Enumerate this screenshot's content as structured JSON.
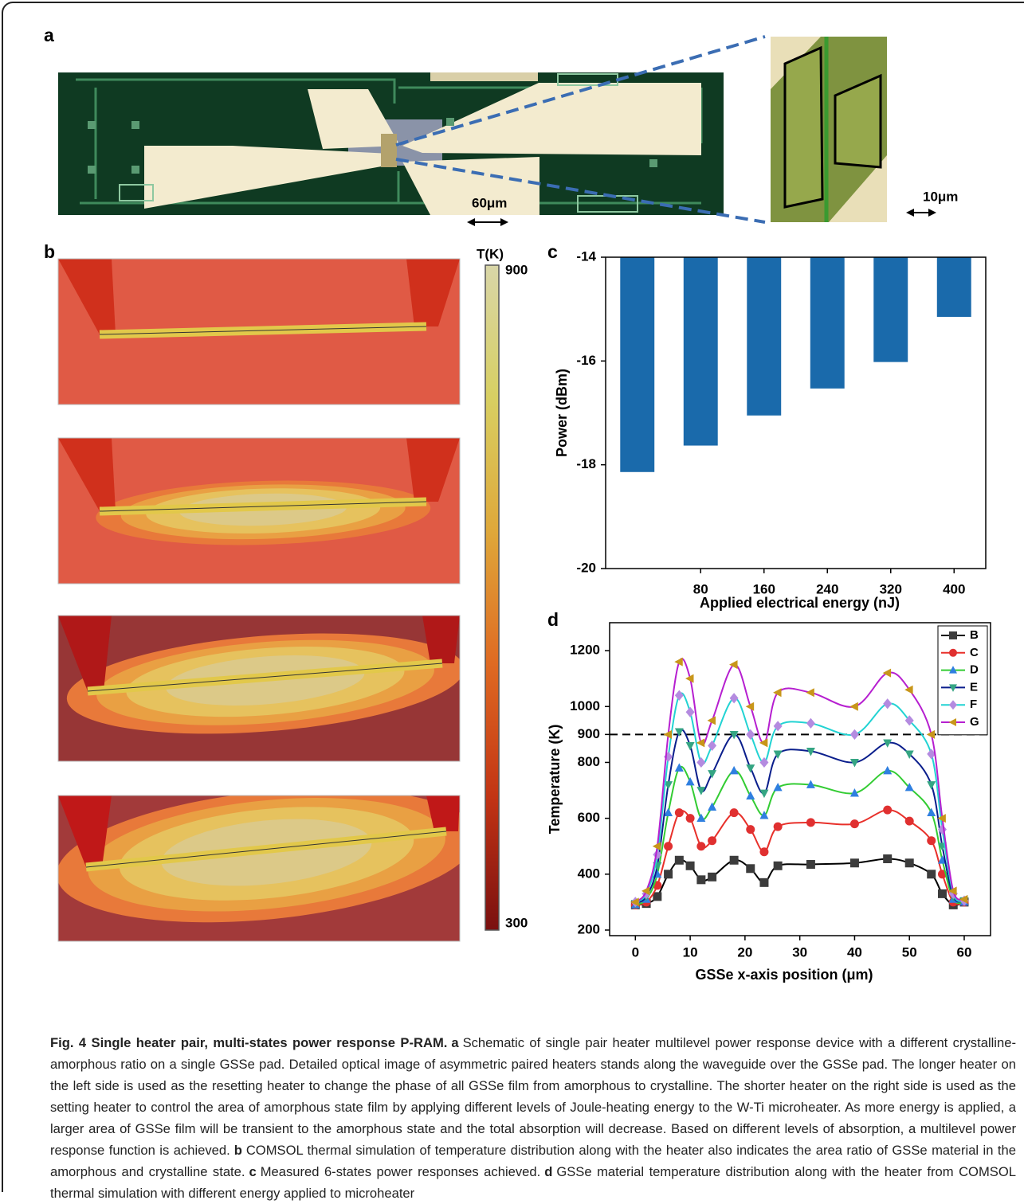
{
  "figure": {
    "panel_labels": [
      "a",
      "b",
      "c",
      "d"
    ],
    "scale_bars": [
      "60μm",
      "10μm"
    ],
    "colorbar": {
      "title": "T(K)",
      "ticks": [
        900,
        300
      ]
    }
  },
  "chart_data": [
    {
      "type": "bar",
      "categories": [
        null,
        "80",
        "160",
        "240",
        "320",
        "400"
      ],
      "values": [
        -18.14,
        -17.63,
        -17.05,
        -16.53,
        -16.02,
        -15.15
      ],
      "color": "#1a6aab",
      "ylim": [
        -20,
        -14
      ],
      "yticks": [
        -14,
        -16,
        -18,
        -20
      ],
      "xlabel": "Applied electrical energy (nJ)",
      "ylabel": "Power (dBm)"
    },
    {
      "type": "line",
      "x": [
        0,
        2,
        4,
        6,
        8,
        10,
        12,
        14,
        18,
        21,
        23.5,
        26,
        32,
        40,
        46,
        50,
        54,
        56,
        58,
        60
      ],
      "series": [
        {
          "name": "B",
          "color": "#000000",
          "marker": "square",
          "marker_color": "#3c3c3c",
          "values": [
            290,
            295,
            320,
            400,
            450,
            430,
            380,
            390,
            450,
            420,
            370,
            430,
            435,
            440,
            455,
            440,
            400,
            330,
            290,
            300
          ]
        },
        {
          "name": "C",
          "color": "#e8302a",
          "marker": "circle",
          "marker_color": "#e03030",
          "values": [
            290,
            300,
            360,
            500,
            620,
            600,
            500,
            520,
            620,
            560,
            480,
            570,
            585,
            580,
            630,
            590,
            520,
            400,
            300,
            300
          ]
        },
        {
          "name": "D",
          "color": "#33cc33",
          "marker": "triangle-up",
          "marker_color": "#2f7fe0",
          "values": [
            290,
            310,
            400,
            620,
            780,
            730,
            600,
            640,
            770,
            680,
            610,
            710,
            720,
            690,
            770,
            710,
            620,
            450,
            310,
            300
          ]
        },
        {
          "name": "E",
          "color": "#0a1e8c",
          "marker": "triangle-down",
          "marker_color": "#35a583",
          "values": [
            295,
            320,
            430,
            720,
            910,
            860,
            700,
            760,
            900,
            780,
            690,
            830,
            840,
            800,
            870,
            830,
            720,
            500,
            320,
            305
          ]
        },
        {
          "name": "F",
          "color": "#22d3d3",
          "marker": "diamond",
          "marker_color": "#b48be0",
          "values": [
            300,
            330,
            470,
            820,
            1040,
            980,
            800,
            860,
            1030,
            900,
            800,
            930,
            940,
            900,
            1010,
            950,
            830,
            560,
            330,
            305
          ]
        },
        {
          "name": "G",
          "color": "#b61fd0",
          "marker": "triangle-left",
          "marker_color": "#c8961a",
          "values": [
            300,
            340,
            500,
            900,
            1160,
            1100,
            870,
            950,
            1150,
            1000,
            870,
            1050,
            1050,
            1000,
            1120,
            1060,
            900,
            600,
            340,
            310
          ]
        }
      ],
      "xlim": [
        -4.7,
        64.8
      ],
      "xticks": [
        0,
        10,
        20,
        30,
        40,
        50,
        60
      ],
      "ylim": [
        180,
        1300
      ],
      "yticks": [
        200,
        400,
        600,
        800,
        900,
        1000,
        1200
      ],
      "hline": 900,
      "legend": "upper right",
      "xlabel": "GSSe x-axis position (μm)",
      "ylabel": "Temperature (K)"
    }
  ],
  "caption": {
    "title": "Fig. 4 Single heater pair, multi-states power response P-RAM.",
    "parts": [
      {
        "panel": "a",
        "text": "Schematic of single pair heater multilevel power response device with a different crystalline-amorphous ratio on a single GSSe pad. Detailed optical image of asymmetric paired heaters stands along the waveguide over the GSSe pad. The longer heater on the left side is used as the resetting heater to change the phase of all GSSe film from amorphous to crystalline. The shorter heater on the right side is used as the setting heater to control the area of amorphous state film by applying different levels of Joule-heating energy to the W-Ti microheater. As more energy is applied, a larger area of GSSe film will be transient to the amorphous state and the total absorption will decrease. Based on different levels of absorption, a multilevel power response function is achieved."
      },
      {
        "panel": "b",
        "text": "COMSOL thermal simulation of temperature distribution along with the heater also indicates the area ratio of GSSe material in the amorphous and crystalline state."
      },
      {
        "panel": "c",
        "text": "Measured 6-states power responses achieved."
      },
      {
        "panel": "d",
        "text": "GSSe material temperature distribution along with the heater from COMSOL thermal simulation with different energy applied to microheater"
      }
    ]
  }
}
